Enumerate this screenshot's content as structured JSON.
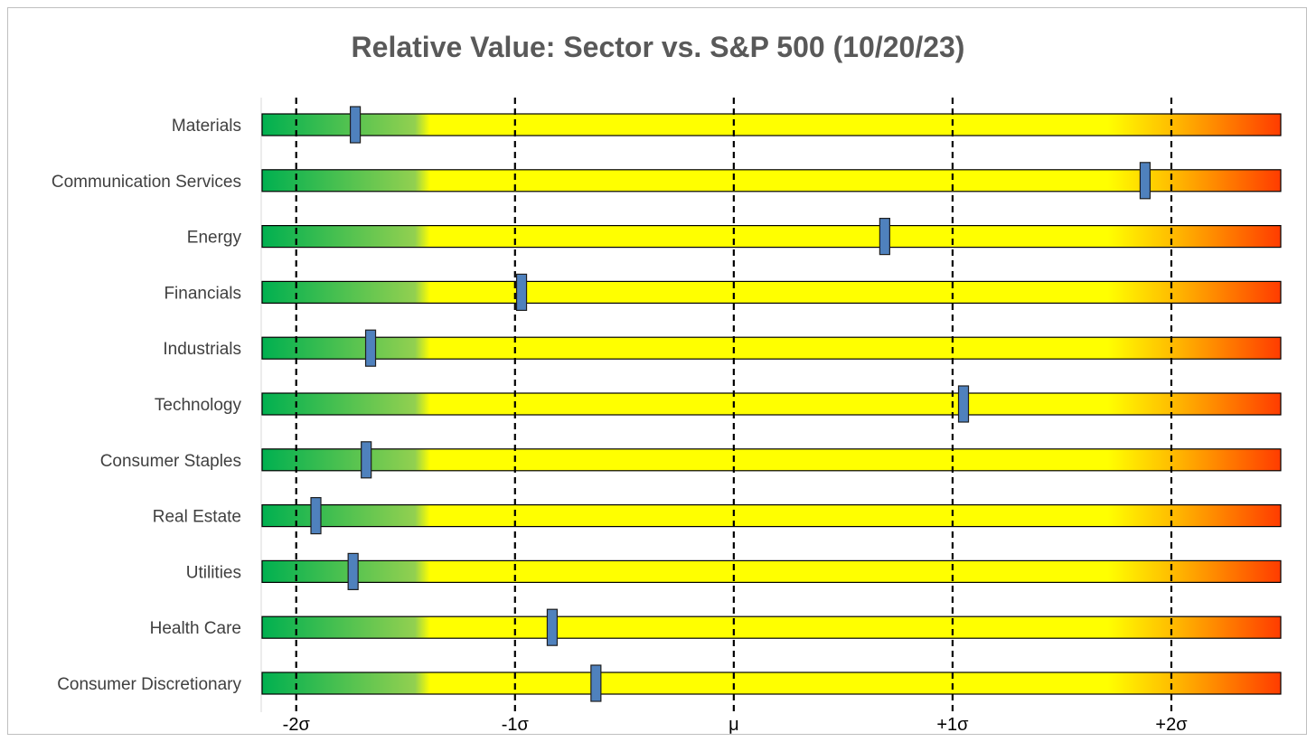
{
  "chart_data": {
    "type": "bar",
    "title": "Relative Value: Sector vs. S&P 500 (10/20/23)",
    "xlabel": "",
    "ylabel": "",
    "xlim": [
      -2.16,
      2.5
    ],
    "reference_lines": [
      {
        "label": "-2σ",
        "value": -2
      },
      {
        "label": "-1σ",
        "value": -1
      },
      {
        "label": "μ",
        "value": 0
      },
      {
        "label": "+1σ",
        "value": 1
      },
      {
        "label": "+2σ",
        "value": 2
      }
    ],
    "categories": [
      "Materials",
      "Communication Services",
      "Energy",
      "Financials",
      "Industrials",
      "Technology",
      "Consumer Staples",
      "Real Estate",
      "Utilities",
      "Health Care",
      "Consumer Discretionary"
    ],
    "values": [
      -1.73,
      1.88,
      0.69,
      -0.97,
      -1.66,
      1.05,
      -1.68,
      -1.91,
      -1.74,
      -0.83,
      -0.63
    ],
    "gradient_colors": {
      "low": "#00b050",
      "mid_low": "#92d050",
      "mid": "#ffff00",
      "mid_high": "#ffc000",
      "high": "#ff3c00"
    },
    "marker_color": "#4f81bd",
    "grid": false
  }
}
